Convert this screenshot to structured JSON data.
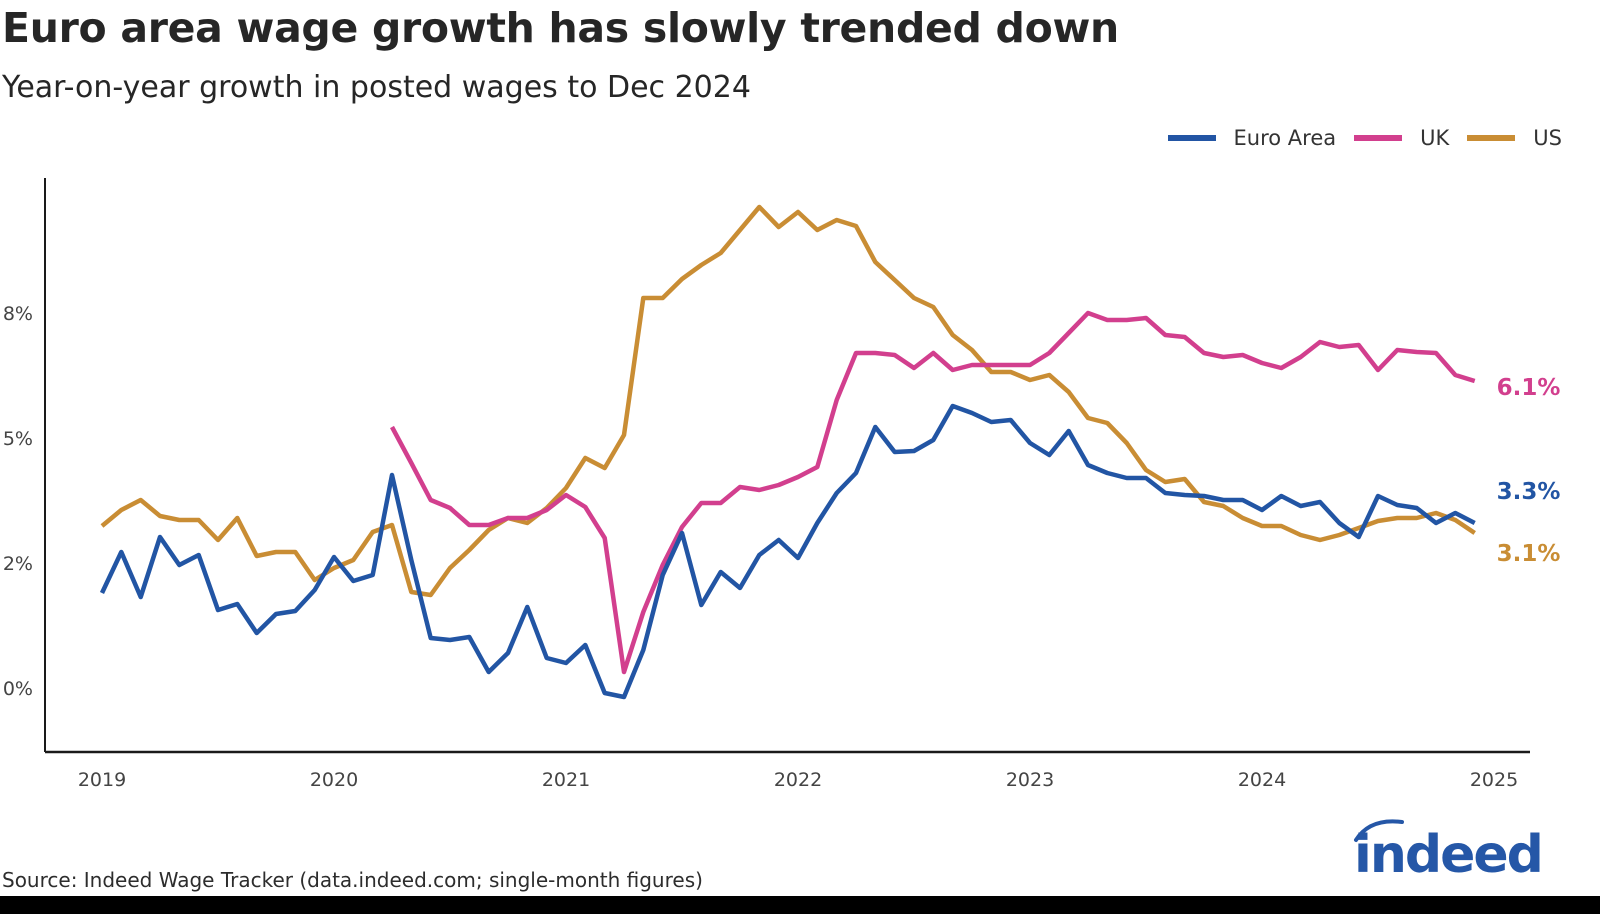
{
  "title": "Euro area wage growth has slowly trended down",
  "subtitle": "Year-on-year growth in posted wages to Dec 2024",
  "source": "Source: Indeed Wage Tracker (data.indeed.com; single-month figures)",
  "logo_text": "indeed",
  "colors": {
    "euro": "#2255a4",
    "uk": "#d23f8e",
    "us": "#c98d34",
    "logo": "#2557a7"
  },
  "chart_data": {
    "type": "line",
    "title": "Euro area wage growth has slowly trended down",
    "subtitle": "Year-on-year growth in posted wages to Dec 2024",
    "xlabel": "",
    "ylabel": "",
    "x_start": "2019-01",
    "x_end": "2024-12",
    "x_frequency": "monthly",
    "x_ticks": [
      "2019",
      "2020",
      "2021",
      "2022",
      "2023",
      "2024",
      "2025"
    ],
    "y_ticks": [
      0,
      2.5,
      5,
      7.5
    ],
    "y_tick_labels": [
      "0%",
      "2%",
      "5%",
      "8%"
    ],
    "ylim": [
      -1.5,
      10
    ],
    "grid": false,
    "legend_position": "top-right",
    "series": [
      {
        "name": "Euro Area",
        "key": "euro",
        "start": "2019-01",
        "end_label": "3.3%",
        "values": [
          1.9,
          2.72,
          1.82,
          3.02,
          2.46,
          2.66,
          1.56,
          1.68,
          1.1,
          1.48,
          1.54,
          1.96,
          2.62,
          2.14,
          2.26,
          4.26,
          2.56,
          1.0,
          0.96,
          1.02,
          0.32,
          0.7,
          1.62,
          0.6,
          0.5,
          0.86,
          -0.1,
          -0.18,
          0.76,
          2.26,
          3.1,
          1.66,
          2.32,
          2.0,
          2.66,
          2.96,
          2.6,
          3.3,
          3.9,
          4.3,
          5.22,
          4.72,
          4.74,
          4.96,
          5.64,
          5.5,
          5.32,
          5.36,
          4.9,
          4.66,
          5.14,
          4.46,
          4.3,
          4.2,
          4.2,
          3.9,
          3.86,
          3.84,
          3.76,
          3.76,
          3.56,
          3.84,
          3.64,
          3.72,
          3.3,
          3.02,
          3.84,
          3.66,
          3.6,
          3.3,
          3.5,
          3.3
        ]
      },
      {
        "name": "UK",
        "key": "uk",
        "start": "2020-04",
        "end_label": "6.1%",
        "values": [
          5.22,
          4.5,
          3.76,
          3.6,
          3.26,
          3.26,
          3.4,
          3.4,
          3.56,
          3.86,
          3.62,
          3.0,
          0.32,
          1.52,
          2.46,
          3.22,
          3.7,
          3.7,
          4.02,
          3.96,
          4.06,
          4.22,
          4.42,
          5.76,
          6.7,
          6.7,
          6.66,
          6.4,
          6.7,
          6.36,
          6.46,
          6.46,
          6.46,
          6.46,
          6.7,
          7.1,
          7.5,
          7.36,
          7.36,
          7.4,
          7.06,
          7.02,
          6.7,
          6.62,
          6.66,
          6.5,
          6.4,
          6.62,
          6.92,
          6.82,
          6.86,
          6.36,
          6.76,
          6.72,
          6.7,
          6.26,
          6.14
        ]
      },
      {
        "name": "US",
        "key": "us",
        "start": "2019-01",
        "end_label": "3.1%",
        "values": [
          3.24,
          3.56,
          3.76,
          3.44,
          3.36,
          3.36,
          2.96,
          3.4,
          2.64,
          2.72,
          2.72,
          2.16,
          2.4,
          2.56,
          3.12,
          3.26,
          1.92,
          1.86,
          2.4,
          2.76,
          3.16,
          3.4,
          3.3,
          3.6,
          4.0,
          4.6,
          4.4,
          5.06,
          7.8,
          7.8,
          8.18,
          8.46,
          8.7,
          9.16,
          9.62,
          9.22,
          9.52,
          9.16,
          9.36,
          9.24,
          8.52,
          8.16,
          7.8,
          7.62,
          7.06,
          6.76,
          6.32,
          6.32,
          6.16,
          6.26,
          5.92,
          5.4,
          5.3,
          4.9,
          4.36,
          4.12,
          4.18,
          3.72,
          3.64,
          3.4,
          3.24,
          3.24,
          3.06,
          2.96,
          3.06,
          3.2,
          3.34,
          3.4,
          3.4,
          3.5,
          3.36,
          3.1
        ]
      }
    ]
  }
}
